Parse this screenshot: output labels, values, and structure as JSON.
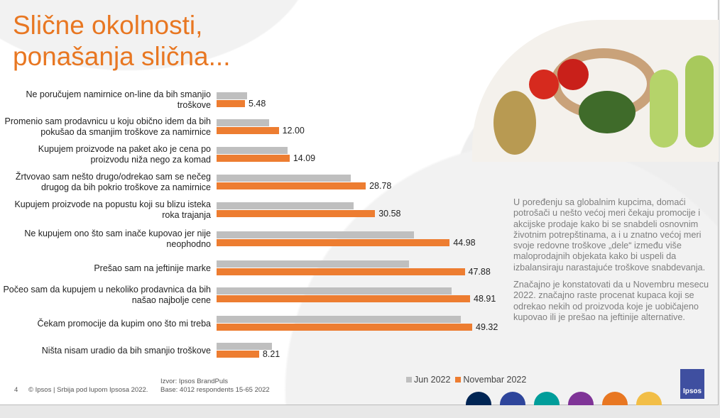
{
  "title": "Slične okolnosti,\nponašanja slična...",
  "chart_data": {
    "type": "bar",
    "orientation": "horizontal",
    "categories": [
      "Ne poručujem namirnice on-line da bih smanjio troškove",
      "Promenio sam prodavnicu u koju obično idem da bih pokušao da smanjim troškove za namirnice",
      "Kupujem proizvode na paket ako je cena po proizvodu niža  nego za komad",
      "Žrtvovao sam nešto drugo/odrekao sam se nečeg drugog da bih pokrio troškove za namirnice",
      "Kupujem proizvode na popustu koji su blizu isteka roka trajanja",
      "Ne kupujem ono što sam inače kupovao jer nije neophodno",
      "Prešao sam na jeftinije marke",
      "Počeo sam da kupujem u nekoliko prodavnica da bih našao najbolje cene",
      "Čekam promocije da kupim ono što mi treba",
      "Ništa nisam uradio da bih smanjio troškove"
    ],
    "series": [
      {
        "name": "Jun 2022",
        "color": "#bfbfbf",
        "values": [
          5.9,
          10.1,
          13.7,
          25.9,
          26.4,
          38.1,
          37.1,
          45.3,
          47.1,
          10.7
        ]
      },
      {
        "name": "Novembar 2022",
        "color": "#ed7d31",
        "values": [
          5.48,
          12.0,
          14.09,
          28.78,
          30.58,
          44.98,
          47.88,
          48.91,
          49.32,
          8.21
        ],
        "labels": [
          "5.48",
          "12.00",
          "14.09",
          "28.78",
          "30.58",
          "44.98",
          "47.88",
          "48.91",
          "49.32",
          "8.21"
        ]
      }
    ],
    "xlim": [
      0,
      50
    ],
    "legend": "bottom"
  },
  "paragraphs": [
    "U poređenju sa globalnim kupcima, domaći potrošači u nešto većoj meri čekaju promocije i akcijske prodaje kako bi se snabdeli osnovnim životnim potrepštinama, a i u znatno većoj meri svoje redovne troškove „dele“ između više maloprodajnih objekata kako bi uspeli da izbalansiraju narastajuće troškove snabdevanja.",
    "Značajno je konstatovati da u Novembru mesecu 2022. značajno raste procenat kupaca koji se odrekao nekih od proizvoda koje je uobičajeno kupovao ili je prešao na jeftinije alternative."
  ],
  "footer": {
    "page": "4",
    "copyright": "© Ipsos | Srbija pod lupom Ipsosa 2022.",
    "source": "Izvor: Ipsos BrandPuls",
    "base": "Base: 4012 respondents 15-65 2022"
  },
  "logo": "Ipsos",
  "dots": [
    "#002554",
    "#2e459b",
    "#009d9a",
    "#7f3497",
    "#e87722",
    "#f2be47"
  ]
}
